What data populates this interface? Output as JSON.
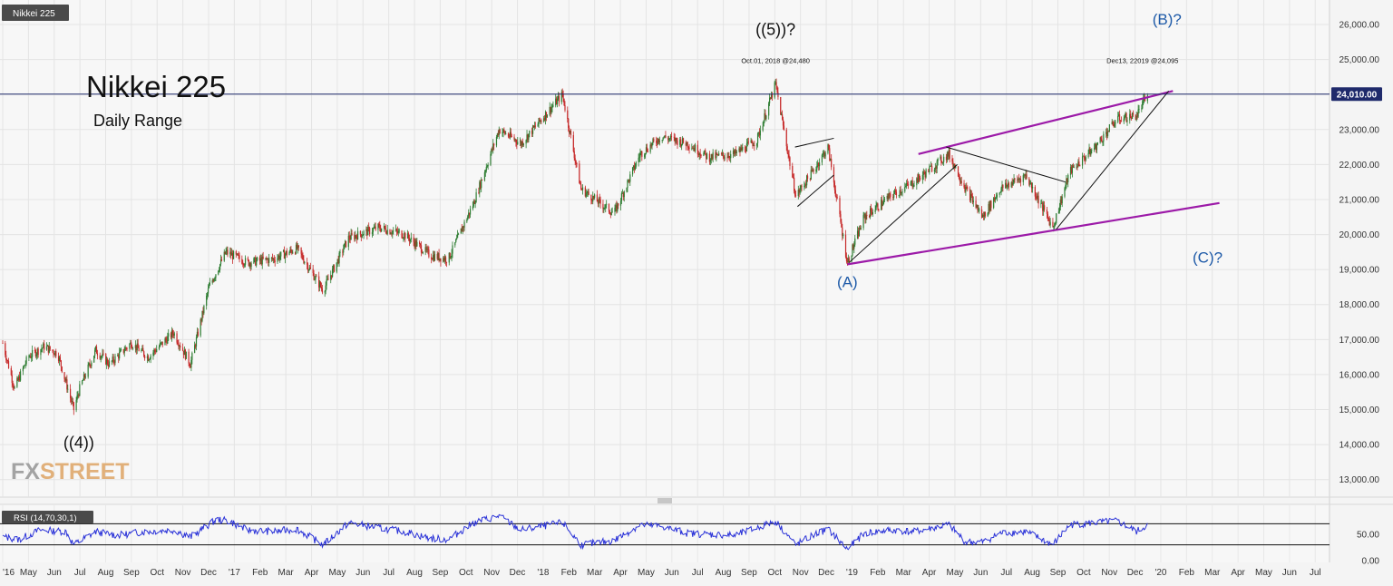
{
  "chart_data": [
    {
      "type": "candlestick",
      "symbol_badge": "Nikkei 225",
      "title": "Nikkei 225",
      "subtitle": "Daily Range",
      "ylim": [
        12500,
        26700
      ],
      "y_ticks": [
        "26,000.00",
        "25,000.00",
        "24,000.00",
        "23,000.00",
        "22,000.00",
        "21,000.00",
        "20,000.00",
        "19,000.00",
        "18,000.00",
        "17,000.00",
        "16,000.00",
        "15,000.00",
        "14,000.00",
        "13,000.00"
      ],
      "x_ticks": [
        "'16",
        "May",
        "Jun",
        "Jul",
        "Aug",
        "Sep",
        "Oct",
        "Nov",
        "Dec",
        "'17",
        "Feb",
        "Mar",
        "Apr",
        "May",
        "Jun",
        "Jul",
        "Aug",
        "Sep",
        "Oct",
        "Nov",
        "Dec",
        "'18",
        "Feb",
        "Mar",
        "Apr",
        "May",
        "Jun",
        "Jul",
        "Aug",
        "Sep",
        "Oct",
        "Nov",
        "Dec",
        "'19",
        "Feb",
        "Mar",
        "Apr",
        "May",
        "Jun",
        "Jul",
        "Aug",
        "Sep",
        "Oct",
        "Nov",
        "Dec",
        "'20",
        "Feb",
        "Mar",
        "Apr",
        "May",
        "Jun",
        "Jul"
      ],
      "x_range": [
        "2016-04-01",
        "2020-07-15"
      ],
      "price_line": {
        "value": 24010,
        "label": "24,010.00"
      },
      "colors": {
        "up": "#2e7d32",
        "down": "#c62828",
        "channel": "#9c1aa8",
        "wave_label": "#1e5aa8",
        "price_line": "#1f2a6b",
        "rsi": "#2a32d8"
      },
      "path": [
        [
          "2016-04-01",
          16900
        ],
        [
          "2016-04-15",
          15600
        ],
        [
          "2016-05-01",
          16500
        ],
        [
          "2016-05-20",
          16800
        ],
        [
          "2016-06-05",
          16600
        ],
        [
          "2016-06-24",
          15000
        ],
        [
          "2016-07-01",
          15600
        ],
        [
          "2016-07-20",
          16700
        ],
        [
          "2016-08-05",
          16300
        ],
        [
          "2016-08-31",
          16900
        ],
        [
          "2016-09-20",
          16500
        ],
        [
          "2016-10-20",
          17200
        ],
        [
          "2016-11-09",
          16300
        ],
        [
          "2016-12-01",
          18500
        ],
        [
          "2016-12-21",
          19500
        ],
        [
          "2017-01-15",
          19200
        ],
        [
          "2017-02-15",
          19300
        ],
        [
          "2017-03-15",
          19600
        ],
        [
          "2017-04-15",
          18400
        ],
        [
          "2017-05-15",
          19900
        ],
        [
          "2017-06-20",
          20200
        ],
        [
          "2017-07-20",
          20000
        ],
        [
          "2017-08-20",
          19400
        ],
        [
          "2017-09-10",
          19300
        ],
        [
          "2017-10-10",
          20900
        ],
        [
          "2017-11-09",
          23000
        ],
        [
          "2017-12-05",
          22600
        ],
        [
          "2018-01-23",
          24000
        ],
        [
          "2018-02-14",
          21300
        ],
        [
          "2018-03-25",
          20600
        ],
        [
          "2018-04-25",
          22300
        ],
        [
          "2018-05-20",
          22800
        ],
        [
          "2018-06-20",
          22600
        ],
        [
          "2018-07-15",
          22200
        ],
        [
          "2018-08-15",
          22300
        ],
        [
          "2018-09-10",
          22700
        ],
        [
          "2018-10-02",
          24300
        ],
        [
          "2018-10-26",
          21100
        ],
        [
          "2018-11-15",
          21800
        ],
        [
          "2018-12-03",
          22500
        ],
        [
          "2018-12-26",
          19200
        ],
        [
          "2019-01-15",
          20500
        ],
        [
          "2019-02-15",
          21100
        ],
        [
          "2019-03-15",
          21500
        ],
        [
          "2019-04-25",
          22300
        ],
        [
          "2019-05-15",
          21300
        ],
        [
          "2019-06-04",
          20500
        ],
        [
          "2019-06-25",
          21300
        ],
        [
          "2019-07-25",
          21700
        ],
        [
          "2019-08-26",
          20200
        ],
        [
          "2019-09-15",
          21800
        ],
        [
          "2019-10-15",
          22500
        ],
        [
          "2019-11-10",
          23300
        ],
        [
          "2019-12-03",
          23400
        ],
        [
          "2019-12-16",
          24000
        ]
      ],
      "trendlines": [
        {
          "kind": "channel",
          "from": [
            "2018-12-26",
            19150
          ],
          "to": [
            "2020-03-10",
            20900
          ]
        },
        {
          "kind": "channel",
          "from": [
            "2019-03-20",
            22300
          ],
          "to": [
            "2020-01-15",
            24100
          ]
        },
        {
          "kind": "wave",
          "from": [
            "2018-12-28",
            19200
          ],
          "to": [
            "2019-05-05",
            22000
          ]
        },
        {
          "kind": "wave",
          "from": [
            "2019-04-22",
            22500
          ],
          "to": [
            "2019-09-10",
            21500
          ]
        },
        {
          "kind": "wave",
          "from": [
            "2019-08-30",
            20150
          ],
          "to": [
            "2020-01-10",
            24100
          ]
        },
        {
          "kind": "wave",
          "from": [
            "2018-10-25",
            22500
          ],
          "to": [
            "2018-12-10",
            22750
          ]
        },
        {
          "kind": "wave",
          "from": [
            "2018-10-28",
            20800
          ],
          "to": [
            "2018-12-10",
            21700
          ]
        }
      ],
      "annotations": [
        {
          "text": "((5))?",
          "at": [
            "2018-10-02",
            25700
          ],
          "size": "large",
          "color": "dark"
        },
        {
          "text": "Oct.01, 2018 @24,480",
          "at": [
            "2018-10-02",
            24900
          ],
          "size": "tiny",
          "color": "dark"
        },
        {
          "text": "Dec13, 22019 @24,095",
          "at": [
            "2019-12-10",
            24900
          ],
          "size": "tiny",
          "color": "dark"
        },
        {
          "text": "(B)?",
          "at": [
            "2020-01-08",
            26000
          ],
          "size": "medium",
          "color": "blue"
        },
        {
          "text": "(A)",
          "at": [
            "2018-12-26",
            18500
          ],
          "size": "medium",
          "color": "blue"
        },
        {
          "text": "(C)?",
          "at": [
            "2020-02-25",
            19200
          ],
          "size": "medium",
          "color": "blue"
        },
        {
          "text": "((4))",
          "at": [
            "2016-06-30",
            13900
          ],
          "size": "large",
          "color": "dark"
        }
      ],
      "watermark": "FXSTREET"
    },
    {
      "type": "line",
      "indicator": "RSI",
      "title": "RSI (14,70,30,1)",
      "ylim": [
        0,
        100
      ],
      "y_ticks": [
        "50.00",
        "0.00"
      ],
      "levels": [
        70,
        30
      ],
      "path": [
        [
          "2016-04-01",
          45
        ],
        [
          "2016-04-20",
          40
        ],
        [
          "2016-05-15",
          58
        ],
        [
          "2016-06-15",
          55
        ],
        [
          "2016-06-24",
          30
        ],
        [
          "2016-07-20",
          55
        ],
        [
          "2016-08-15",
          48
        ],
        [
          "2016-09-15",
          55
        ],
        [
          "2016-10-20",
          58
        ],
        [
          "2016-11-09",
          45
        ],
        [
          "2016-12-10",
          78
        ],
        [
          "2016-12-25",
          75
        ],
        [
          "2017-01-15",
          58
        ],
        [
          "2017-02-15",
          55
        ],
        [
          "2017-03-15",
          60
        ],
        [
          "2017-04-15",
          30
        ],
        [
          "2017-05-15",
          72
        ],
        [
          "2017-06-20",
          62
        ],
        [
          "2017-07-20",
          55
        ],
        [
          "2017-08-20",
          42
        ],
        [
          "2017-09-10",
          40
        ],
        [
          "2017-10-10",
          72
        ],
        [
          "2017-11-09",
          85
        ],
        [
          "2017-12-05",
          58
        ],
        [
          "2018-01-23",
          72
        ],
        [
          "2018-02-14",
          30
        ],
        [
          "2018-03-25",
          38
        ],
        [
          "2018-04-25",
          68
        ],
        [
          "2018-05-20",
          65
        ],
        [
          "2018-06-20",
          52
        ],
        [
          "2018-07-15",
          50
        ],
        [
          "2018-08-15",
          48
        ],
        [
          "2018-09-10",
          62
        ],
        [
          "2018-10-02",
          75
        ],
        [
          "2018-10-26",
          30
        ],
        [
          "2018-11-15",
          48
        ],
        [
          "2018-12-03",
          60
        ],
        [
          "2018-12-26",
          22
        ],
        [
          "2019-01-15",
          52
        ],
        [
          "2019-02-15",
          58
        ],
        [
          "2019-03-15",
          55
        ],
        [
          "2019-04-25",
          68
        ],
        [
          "2019-05-15",
          35
        ],
        [
          "2019-06-04",
          35
        ],
        [
          "2019-06-25",
          52
        ],
        [
          "2019-07-25",
          55
        ],
        [
          "2019-08-26",
          30
        ],
        [
          "2019-09-15",
          68
        ],
        [
          "2019-10-15",
          72
        ],
        [
          "2019-11-10",
          75
        ],
        [
          "2019-12-03",
          55
        ],
        [
          "2019-12-16",
          68
        ]
      ]
    }
  ]
}
